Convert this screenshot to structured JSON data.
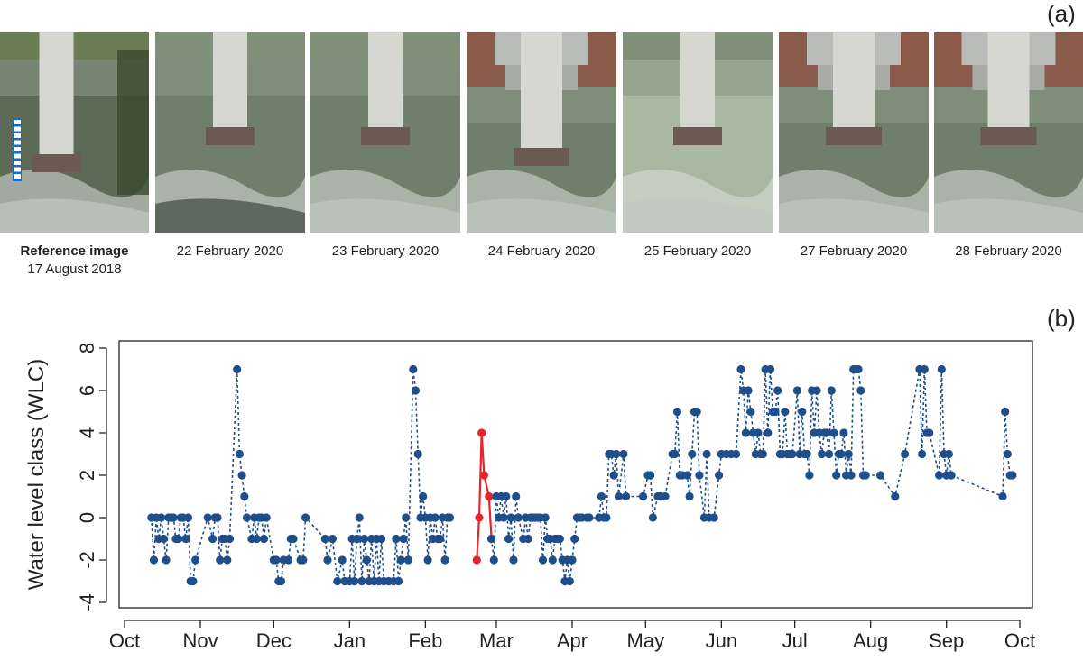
{
  "panel_a_label": "(a)",
  "panel_b_label": "(b)",
  "photos": [
    {
      "title": "Reference image",
      "date": "17 August 2018",
      "icon": "gauge-pole-photo"
    },
    {
      "title": "",
      "date": "22 February 2020",
      "icon": "bridge-pier-photo"
    },
    {
      "title": "",
      "date": "23 February 2020",
      "icon": "bridge-pier-photo"
    },
    {
      "title": "",
      "date": "24 February 2020",
      "icon": "bridge-pier-photo"
    },
    {
      "title": "",
      "date": "25 February 2020",
      "icon": "bridge-pier-photo"
    },
    {
      "title": "",
      "date": "27 February 2020",
      "icon": "bridge-pier-photo"
    },
    {
      "title": "",
      "date": "28 February 2020",
      "icon": "bridge-pier-photo"
    }
  ],
  "chart_data": {
    "type": "line",
    "title": "",
    "xlabel": "",
    "ylabel": "Water level class (WLC)",
    "ylim": [
      -4,
      8
    ],
    "yticks": [
      -4,
      -2,
      0,
      2,
      4,
      6,
      8
    ],
    "xlim": [
      "2019-10-01",
      "2020-10-01"
    ],
    "xtick_labels": [
      "Oct",
      "Nov",
      "Dec",
      "Jan",
      "Feb",
      "Mar",
      "Apr",
      "May",
      "Jun",
      "Jul",
      "Aug",
      "Sep",
      "Oct"
    ],
    "xtick_dates": [
      "2019-10-01",
      "2019-11-01",
      "2019-12-01",
      "2020-01-01",
      "2020-02-01",
      "2020-03-01",
      "2020-04-01",
      "2020-05-01",
      "2020-06-01",
      "2020-07-01",
      "2020-08-01",
      "2020-09-01",
      "2020-10-01"
    ],
    "grid": false,
    "series": [
      {
        "name": "",
        "color": "#1f4e8c",
        "style": "dotted",
        "points": [
          [
            "2019-10-12",
            0
          ],
          [
            "2019-10-13",
            -2
          ],
          [
            "2019-10-14",
            0
          ],
          [
            "2019-10-15",
            -1
          ],
          [
            "2019-10-16",
            0
          ],
          [
            "2019-10-17",
            -1
          ],
          [
            "2019-10-18",
            -2
          ],
          [
            "2019-10-19",
            0
          ],
          [
            "2019-10-20",
            0
          ],
          [
            "2019-10-21",
            0
          ],
          [
            "2019-10-22",
            -1
          ],
          [
            "2019-10-23",
            -1
          ],
          [
            "2019-10-24",
            0
          ],
          [
            "2019-10-25",
            0
          ],
          [
            "2019-10-26",
            -1
          ],
          [
            "2019-10-27",
            0
          ],
          [
            "2019-10-28",
            -3
          ],
          [
            "2019-10-29",
            -3
          ],
          [
            "2019-10-30",
            -2
          ],
          [
            "2019-11-04",
            0
          ],
          [
            "2019-11-06",
            -1
          ],
          [
            "2019-11-07",
            0
          ],
          [
            "2019-11-08",
            0
          ],
          [
            "2019-11-09",
            -2
          ],
          [
            "2019-11-10",
            -1
          ],
          [
            "2019-11-11",
            -1
          ],
          [
            "2019-11-12",
            -2
          ],
          [
            "2019-11-13",
            -1
          ],
          [
            "2019-11-16",
            7
          ],
          [
            "2019-11-17",
            3
          ],
          [
            "2019-11-18",
            2
          ],
          [
            "2019-11-19",
            1
          ],
          [
            "2019-11-20",
            0
          ],
          [
            "2019-11-22",
            -1
          ],
          [
            "2019-11-23",
            0
          ],
          [
            "2019-11-24",
            -1
          ],
          [
            "2019-11-25",
            0
          ],
          [
            "2019-11-26",
            0
          ],
          [
            "2019-11-27",
            -1
          ],
          [
            "2019-11-28",
            0
          ],
          [
            "2019-12-01",
            -2
          ],
          [
            "2019-12-02",
            -2
          ],
          [
            "2019-12-03",
            -3
          ],
          [
            "2019-12-04",
            -3
          ],
          [
            "2019-12-05",
            -2
          ],
          [
            "2019-12-07",
            -2
          ],
          [
            "2019-12-08",
            -1
          ],
          [
            "2019-12-09",
            -1
          ],
          [
            "2019-12-12",
            -2
          ],
          [
            "2019-12-13",
            -2
          ],
          [
            "2019-12-14",
            0
          ],
          [
            "2019-12-22",
            -1
          ],
          [
            "2019-12-23",
            -2
          ],
          [
            "2019-12-25",
            -1
          ],
          [
            "2019-12-27",
            -3
          ],
          [
            "2019-12-29",
            -2
          ],
          [
            "2019-12-30",
            -3
          ],
          [
            "2020-01-01",
            -3
          ],
          [
            "2020-01-02",
            -1
          ],
          [
            "2020-01-03",
            -3
          ],
          [
            "2020-01-04",
            -1
          ],
          [
            "2020-01-05",
            0
          ],
          [
            "2020-01-06",
            -3
          ],
          [
            "2020-01-07",
            -1
          ],
          [
            "2020-01-08",
            -2
          ],
          [
            "2020-01-09",
            -3
          ],
          [
            "2020-01-10",
            -1
          ],
          [
            "2020-01-11",
            -3
          ],
          [
            "2020-01-12",
            -1
          ],
          [
            "2020-01-13",
            -3
          ],
          [
            "2020-01-14",
            -1
          ],
          [
            "2020-01-15",
            -3
          ],
          [
            "2020-01-17",
            -3
          ],
          [
            "2020-01-19",
            -3
          ],
          [
            "2020-01-20",
            -1
          ],
          [
            "2020-01-21",
            -3
          ],
          [
            "2020-01-22",
            -2
          ],
          [
            "2020-01-23",
            -1
          ],
          [
            "2020-01-24",
            0
          ],
          [
            "2020-01-25",
            -2
          ],
          [
            "2020-01-27",
            7
          ],
          [
            "2020-01-28",
            6
          ],
          [
            "2020-01-29",
            3
          ],
          [
            "2020-01-30",
            0
          ],
          [
            "2020-01-31",
            1
          ],
          [
            "2020-02-01",
            0
          ],
          [
            "2020-02-02",
            -2
          ],
          [
            "2020-02-03",
            0
          ],
          [
            "2020-02-04",
            -1
          ],
          [
            "2020-02-05",
            0
          ],
          [
            "2020-02-06",
            -1
          ],
          [
            "2020-02-07",
            -1
          ],
          [
            "2020-02-08",
            0
          ],
          [
            "2020-02-09",
            -2
          ],
          [
            "2020-02-10",
            0
          ],
          [
            "2020-02-11",
            0
          ]
        ]
      },
      {
        "name": "",
        "color": "#e3242b",
        "style": "solid",
        "points": [
          [
            "2020-02-22",
            -2
          ],
          [
            "2020-02-23",
            0
          ],
          [
            "2020-02-24",
            4
          ],
          [
            "2020-02-25",
            2
          ],
          [
            "2020-02-27",
            1
          ],
          [
            "2020-02-28",
            -1
          ]
        ]
      },
      {
        "name": "",
        "color": "#1f4e8c",
        "style": "dotted",
        "points": [
          [
            "2020-02-28",
            -1
          ],
          [
            "2020-02-29",
            -2
          ],
          [
            "2020-03-01",
            1
          ],
          [
            "2020-03-02",
            0
          ],
          [
            "2020-03-03",
            1
          ],
          [
            "2020-03-04",
            0
          ],
          [
            "2020-03-05",
            1
          ],
          [
            "2020-03-06",
            -1
          ],
          [
            "2020-03-07",
            0
          ],
          [
            "2020-03-08",
            -2
          ],
          [
            "2020-03-09",
            1
          ],
          [
            "2020-03-10",
            0
          ],
          [
            "2020-03-12",
            -1
          ],
          [
            "2020-03-13",
            0
          ],
          [
            "2020-03-14",
            -1
          ],
          [
            "2020-03-15",
            0
          ],
          [
            "2020-03-16",
            0
          ],
          [
            "2020-03-17",
            0
          ],
          [
            "2020-03-18",
            0
          ],
          [
            "2020-03-19",
            0
          ],
          [
            "2020-03-20",
            -2
          ],
          [
            "2020-03-21",
            0
          ],
          [
            "2020-03-22",
            -1
          ],
          [
            "2020-03-23",
            -1
          ],
          [
            "2020-03-24",
            -2
          ],
          [
            "2020-03-25",
            -1
          ],
          [
            "2020-03-26",
            -1
          ],
          [
            "2020-03-27",
            -1
          ],
          [
            "2020-03-28",
            -2
          ],
          [
            "2020-03-29",
            -3
          ],
          [
            "2020-03-30",
            -2
          ],
          [
            "2020-03-31",
            -3
          ],
          [
            "2020-04-01",
            -2
          ],
          [
            "2020-04-02",
            -1
          ],
          [
            "2020-04-03",
            0
          ],
          [
            "2020-04-04",
            0
          ],
          [
            "2020-04-05",
            0
          ],
          [
            "2020-04-07",
            0
          ],
          [
            "2020-04-08",
            0
          ],
          [
            "2020-04-12",
            0
          ],
          [
            "2020-04-13",
            1
          ],
          [
            "2020-04-14",
            0
          ],
          [
            "2020-04-15",
            0
          ],
          [
            "2020-04-16",
            3
          ],
          [
            "2020-04-17",
            3
          ],
          [
            "2020-04-18",
            2
          ],
          [
            "2020-04-19",
            3
          ],
          [
            "2020-04-20",
            1
          ],
          [
            "2020-04-22",
            3
          ],
          [
            "2020-04-23",
            1
          ],
          [
            "2020-04-30",
            1
          ],
          [
            "2020-05-02",
            2
          ],
          [
            "2020-05-03",
            2
          ],
          [
            "2020-05-04",
            0
          ],
          [
            "2020-05-06",
            1
          ],
          [
            "2020-05-07",
            1
          ],
          [
            "2020-05-09",
            1
          ],
          [
            "2020-05-12",
            3
          ],
          [
            "2020-05-13",
            3
          ],
          [
            "2020-05-14",
            5
          ],
          [
            "2020-05-15",
            2
          ],
          [
            "2020-05-16",
            2
          ],
          [
            "2020-05-18",
            2
          ],
          [
            "2020-05-19",
            1
          ],
          [
            "2020-05-20",
            3
          ],
          [
            "2020-05-21",
            5
          ],
          [
            "2020-05-22",
            5
          ],
          [
            "2020-05-23",
            2
          ],
          [
            "2020-05-25",
            0
          ],
          [
            "2020-05-26",
            3
          ],
          [
            "2020-05-27",
            0
          ],
          [
            "2020-05-29",
            0
          ],
          [
            "2020-05-31",
            2
          ],
          [
            "2020-06-01",
            3
          ],
          [
            "2020-06-03",
            3
          ],
          [
            "2020-06-05",
            3
          ],
          [
            "2020-06-07",
            3
          ],
          [
            "2020-06-09",
            7
          ],
          [
            "2020-06-10",
            6
          ],
          [
            "2020-06-11",
            4
          ],
          [
            "2020-06-12",
            6
          ],
          [
            "2020-06-13",
            5
          ],
          [
            "2020-06-14",
            4
          ],
          [
            "2020-06-15",
            3
          ],
          [
            "2020-06-16",
            4
          ],
          [
            "2020-06-17",
            3
          ],
          [
            "2020-06-18",
            3
          ],
          [
            "2020-06-19",
            7
          ],
          [
            "2020-06-20",
            4
          ],
          [
            "2020-06-21",
            7
          ],
          [
            "2020-06-22",
            5
          ],
          [
            "2020-06-23",
            5
          ],
          [
            "2020-06-24",
            6
          ],
          [
            "2020-06-25",
            3
          ],
          [
            "2020-06-26",
            3
          ],
          [
            "2020-06-27",
            5
          ],
          [
            "2020-06-28",
            3
          ],
          [
            "2020-06-29",
            3
          ],
          [
            "2020-06-30",
            3
          ],
          [
            "2020-07-02",
            6
          ],
          [
            "2020-07-03",
            3
          ],
          [
            "2020-07-04",
            5
          ],
          [
            "2020-07-05",
            3
          ],
          [
            "2020-07-06",
            3
          ],
          [
            "2020-07-07",
            2
          ],
          [
            "2020-07-08",
            6
          ],
          [
            "2020-07-09",
            4
          ],
          [
            "2020-07-10",
            6
          ],
          [
            "2020-07-11",
            4
          ],
          [
            "2020-07-12",
            3
          ],
          [
            "2020-07-13",
            4
          ],
          [
            "2020-07-14",
            4
          ],
          [
            "2020-07-15",
            3
          ],
          [
            "2020-07-16",
            6
          ],
          [
            "2020-07-17",
            4
          ],
          [
            "2020-07-18",
            2
          ],
          [
            "2020-07-19",
            3
          ],
          [
            "2020-07-20",
            3
          ],
          [
            "2020-07-21",
            4
          ],
          [
            "2020-07-22",
            2
          ],
          [
            "2020-07-23",
            3
          ],
          [
            "2020-07-24",
            2
          ],
          [
            "2020-07-25",
            7
          ],
          [
            "2020-07-26",
            7
          ],
          [
            "2020-07-27",
            7
          ],
          [
            "2020-07-28",
            6
          ],
          [
            "2020-07-29",
            2
          ],
          [
            "2020-07-30",
            2
          ],
          [
            "2020-08-05",
            2
          ],
          [
            "2020-08-11",
            1
          ],
          [
            "2020-08-15",
            3
          ],
          [
            "2020-08-21",
            7
          ],
          [
            "2020-08-22",
            3
          ],
          [
            "2020-08-23",
            7
          ],
          [
            "2020-08-24",
            4
          ],
          [
            "2020-08-25",
            4
          ],
          [
            "2020-08-29",
            2
          ],
          [
            "2020-08-30",
            7
          ],
          [
            "2020-08-31",
            3
          ],
          [
            "2020-09-01",
            2
          ],
          [
            "2020-09-02",
            3
          ],
          [
            "2020-09-03",
            2
          ],
          [
            "2020-09-24",
            1
          ],
          [
            "2020-09-25",
            5
          ],
          [
            "2020-09-26",
            3
          ],
          [
            "2020-09-27",
            2
          ],
          [
            "2020-09-28",
            2
          ]
        ]
      }
    ]
  }
}
